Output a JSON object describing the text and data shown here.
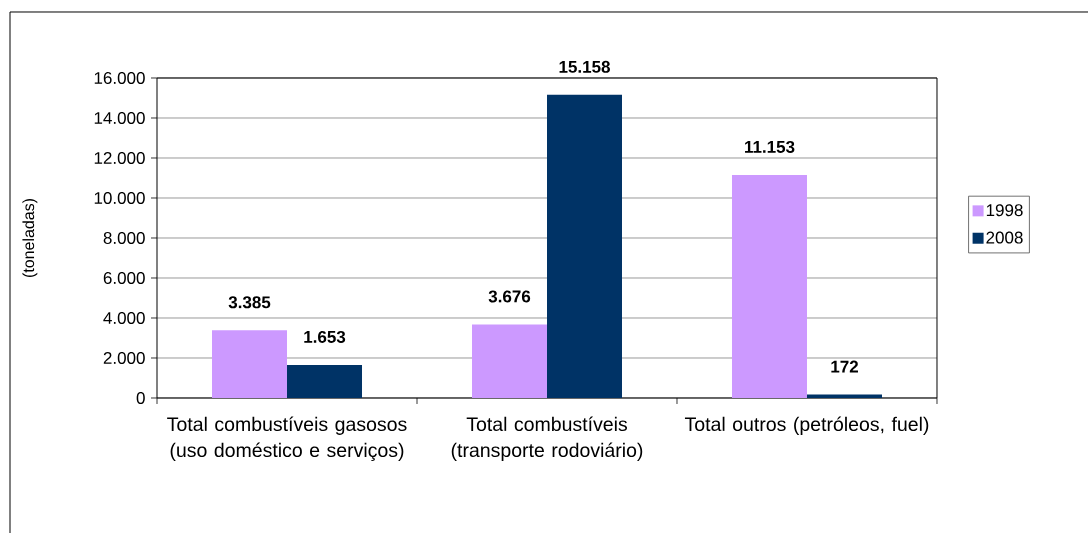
{
  "chart_data": {
    "type": "bar",
    "ylabel": "(toneladas)",
    "categories": [
      "Total combustíveis gasosos (uso doméstico e serviços)",
      "Total combustíveis (transporte rodoviário)",
      "Total outros (petróleos, fuel)"
    ],
    "series": [
      {
        "name": "1998",
        "color": "#cc99ff",
        "values": [
          3385,
          3676,
          11153
        ],
        "value_labels": [
          "3.385",
          "3.676",
          "11.153"
        ]
      },
      {
        "name": "2008",
        "color": "#003366",
        "values": [
          1653,
          15158,
          172
        ],
        "value_labels": [
          "1.653",
          "15.158",
          "172"
        ]
      }
    ],
    "ylim": [
      0,
      16000
    ],
    "yticks": [
      0,
      {
        "value": 2000,
        "label": "2.000"
      },
      {
        "value": 4000,
        "label": "4.000"
      },
      {
        "value": 6000,
        "label": "6.000"
      },
      {
        "value": 8000,
        "label": "8.000"
      },
      {
        "value": 10000,
        "label": "10.000"
      },
      {
        "value": 12000,
        "label": "12.000"
      },
      {
        "value": 14000,
        "label": "14.000"
      },
      {
        "value": 16000,
        "label": "16.000"
      }
    ],
    "grid": "y",
    "legend": "right"
  }
}
